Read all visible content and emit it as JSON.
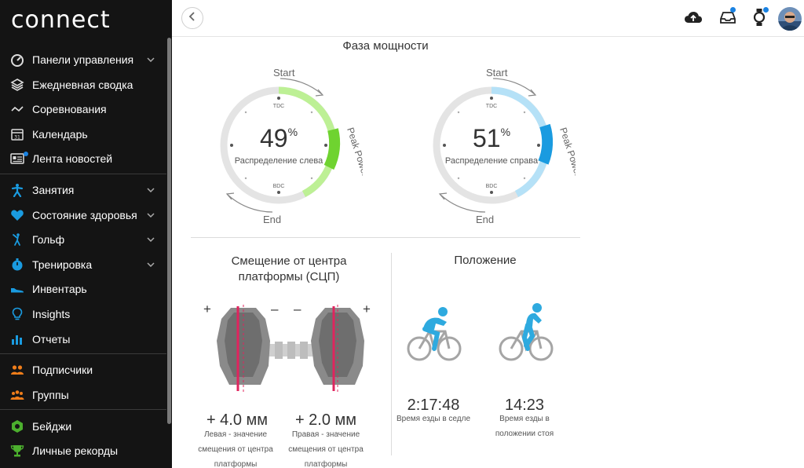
{
  "app": {
    "logo": "connect"
  },
  "sidebar": {
    "items": [
      {
        "label": "Панели управления",
        "icon": "dashboard-icon",
        "has_chevron": true
      },
      {
        "label": "Ежедневная сводка",
        "icon": "layers-icon",
        "has_chevron": false
      },
      {
        "label": "Соревнования",
        "icon": "trend-icon",
        "has_chevron": false
      },
      {
        "label": "Календарь",
        "icon": "calendar-icon",
        "has_chevron": false
      },
      {
        "label": "Лента новостей",
        "icon": "newsfeed-icon",
        "has_chevron": false
      },
      {
        "label": "Занятия",
        "icon": "activity-icon",
        "has_chevron": true
      },
      {
        "label": "Состояние здоровья",
        "icon": "heart-icon",
        "has_chevron": true
      },
      {
        "label": "Гольф",
        "icon": "golf-icon",
        "has_chevron": true
      },
      {
        "label": "Тренировка",
        "icon": "stopwatch-icon",
        "has_chevron": true
      },
      {
        "label": "Инвентарь",
        "icon": "shoe-icon",
        "has_chevron": false
      },
      {
        "label": "Insights",
        "icon": "lightbulb-icon",
        "has_chevron": false
      },
      {
        "label": "Отчеты",
        "icon": "bar-chart-icon",
        "has_chevron": false
      },
      {
        "label": "Подписчики",
        "icon": "followers-icon",
        "has_chevron": false
      },
      {
        "label": "Группы",
        "icon": "groups-icon",
        "has_chevron": false
      },
      {
        "label": "Бейджи",
        "icon": "badge-icon",
        "has_chevron": false
      },
      {
        "label": "Личные рекорды",
        "icon": "trophy-icon",
        "has_chevron": false
      }
    ],
    "calendar_day": "31"
  },
  "topbar": {
    "icons": [
      "back-icon",
      "upload-icon",
      "inbox-icon",
      "watch-icon",
      "avatar"
    ]
  },
  "power_phase": {
    "title": "Фаза мощности",
    "left": {
      "value": "49",
      "unit": "%",
      "label": "Распределение слева",
      "color": "#7ddc3a",
      "light": "#bdf095"
    },
    "right": {
      "value": "51",
      "unit": "%",
      "label": "Распределение справа",
      "color": "#1a9be0",
      "light": "#b5e1f7"
    },
    "labels": {
      "start": "Start",
      "end": "End",
      "peak": "Peak Power",
      "tdc": "TDC",
      "bdc": "BDC"
    }
  },
  "pco": {
    "title_line1": "Смещение от центра",
    "title_line2": "платформы (СЦП)",
    "plus": "+",
    "minus": "–",
    "left": {
      "value": "+ 4.0 мм",
      "desc": [
        "Левая - значение",
        "смещения от центра",
        "платформы"
      ]
    },
    "right": {
      "value": "+ 2.0 мм",
      "desc": [
        "Правая - значение",
        "смещения от центра",
        "платформы"
      ]
    }
  },
  "position": {
    "title": "Положение",
    "seated": {
      "value": "2:17:48",
      "desc": [
        "Время езды в седле"
      ]
    },
    "standing": {
      "value": "14:23",
      "desc": [
        "Время езды в",
        "положении стоя"
      ]
    }
  }
}
